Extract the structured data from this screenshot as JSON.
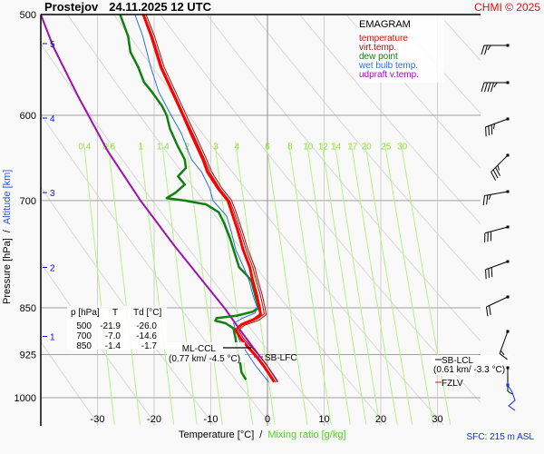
{
  "header": {
    "station": "Prostejov",
    "datetime": "24.11.2025 12 UTC",
    "copyright": "CHMI © 2025"
  },
  "footer": {
    "sfc": "SFC: 215 m ASL"
  },
  "chart_data": {
    "type": "line",
    "title": "Prostejov 24.11.2025 12 UTC",
    "diagram": "EMAGRAM",
    "xlabel": "Temperature [°C]",
    "xlabel_sep": "/",
    "xlabel2": "Mixing ratio [g/kg]",
    "ylabel": "Pressure [hPa]",
    "ylabel_sep": "/",
    "ylabel2": "Altitude [km]",
    "xlim": [
      -32,
      37
    ],
    "ylim": [
      1000,
      500
    ],
    "x_ticks": [
      -30,
      -20,
      -10,
      0,
      10,
      20,
      30
    ],
    "y_ticks": [
      500,
      600,
      700,
      850,
      925,
      1000
    ],
    "altitude_ticks": [
      {
        "km": "1",
        "p": 895
      },
      {
        "km": "2",
        "p": 790
      },
      {
        "km": "3",
        "p": 690
      },
      {
        "km": "4",
        "p": 603
      },
      {
        "km": "5",
        "p": 527
      }
    ],
    "mixing_ratio_lines": [
      "0.4",
      "0.6",
      "1",
      "1.4",
      "2",
      "3",
      "4",
      "6",
      "8",
      "10",
      "12",
      "14",
      "17",
      "20",
      "25",
      "30"
    ],
    "mixing_ratio_label_p": 640,
    "legend": {
      "position": "top-right",
      "entries": [
        {
          "name": "temperature",
          "color": "#ff0000"
        },
        {
          "name": "virt.temp.",
          "color": "#a01010"
        },
        {
          "name": "dew point",
          "color": "#108010"
        },
        {
          "name": "wet bulb temp.",
          "color": "#3070e0"
        },
        {
          "name": "udpraft v.temp.",
          "color": "#a010b0"
        }
      ]
    },
    "series": [
      {
        "name": "temperature",
        "color": "#ff0000",
        "points": [
          [
            -21.9,
            500
          ],
          [
            -20.5,
            520
          ],
          [
            -18.8,
            550
          ],
          [
            -16.8,
            575
          ],
          [
            -14.9,
            600
          ],
          [
            -13.5,
            620
          ],
          [
            -11.4,
            650
          ],
          [
            -10.6,
            665
          ],
          [
            -8.7,
            685
          ],
          [
            -7.0,
            700
          ],
          [
            -6.3,
            715
          ],
          [
            -5.2,
            740
          ],
          [
            -4.3,
            765
          ],
          [
            -3.1,
            790
          ],
          [
            -2.6,
            810
          ],
          [
            -1.9,
            830
          ],
          [
            -1.4,
            850
          ],
          [
            -1.2,
            860
          ],
          [
            -2.4,
            868
          ],
          [
            -4.6,
            876
          ],
          [
            -5.6,
            885
          ],
          [
            -4.6,
            900
          ],
          [
            -3.2,
            915
          ],
          [
            -1.8,
            930
          ],
          [
            -0.6,
            945
          ],
          [
            0.4,
            960
          ],
          [
            1.2,
            972
          ]
        ]
      },
      {
        "name": "virt.temp.",
        "color": "#a01010",
        "points": [
          [
            -21.6,
            500
          ],
          [
            -20.1,
            520
          ],
          [
            -18.4,
            550
          ],
          [
            -16.4,
            575
          ],
          [
            -14.5,
            600
          ],
          [
            -13.0,
            620
          ],
          [
            -10.9,
            650
          ],
          [
            -10.0,
            665
          ],
          [
            -8.2,
            685
          ],
          [
            -6.5,
            700
          ],
          [
            -5.7,
            715
          ],
          [
            -4.6,
            740
          ],
          [
            -3.6,
            765
          ],
          [
            -2.4,
            790
          ],
          [
            -1.8,
            810
          ],
          [
            -1.1,
            830
          ],
          [
            -0.6,
            850
          ],
          [
            -0.4,
            860
          ],
          [
            -1.6,
            868
          ],
          [
            -4.2,
            876
          ],
          [
            -5.3,
            885
          ],
          [
            -4.3,
            900
          ],
          [
            -2.8,
            915
          ],
          [
            -1.4,
            930
          ],
          [
            -0.2,
            945
          ],
          [
            0.8,
            960
          ],
          [
            1.6,
            972
          ]
        ]
      },
      {
        "name": "dew point",
        "color": "#108010",
        "points": [
          [
            -26.0,
            500
          ],
          [
            -24.6,
            520
          ],
          [
            -24.2,
            535
          ],
          [
            -22.8,
            550
          ],
          [
            -21.8,
            565
          ],
          [
            -20.4,
            575
          ],
          [
            -18.6,
            590
          ],
          [
            -17.8,
            600
          ],
          [
            -17.2,
            615
          ],
          [
            -15.8,
            635
          ],
          [
            -14.6,
            650
          ],
          [
            -14.4,
            660
          ],
          [
            -15.8,
            670
          ],
          [
            -14.6,
            680
          ],
          [
            -16.2,
            690
          ],
          [
            -17.8,
            697
          ],
          [
            -14.6,
            700
          ],
          [
            -10.8,
            705
          ],
          [
            -8.6,
            715
          ],
          [
            -7.6,
            730
          ],
          [
            -6.6,
            750
          ],
          [
            -5.6,
            775
          ],
          [
            -5.0,
            790
          ],
          [
            -3.8,
            800
          ],
          [
            -2.8,
            810
          ],
          [
            -2.2,
            830
          ],
          [
            -1.7,
            845
          ],
          [
            -1.6,
            850
          ],
          [
            -2.6,
            856
          ],
          [
            -5.4,
            862
          ],
          [
            -9.0,
            866
          ],
          [
            -9.2,
            870
          ],
          [
            -7.4,
            874
          ],
          [
            -6.0,
            882
          ],
          [
            -5.6,
            900
          ],
          [
            -5.4,
            915
          ],
          [
            -4.8,
            940
          ],
          [
            -4.6,
            955
          ],
          [
            -3.8,
            968
          ]
        ]
      },
      {
        "name": "wet bulb temp.",
        "color": "#3070e0",
        "points": [
          [
            -23.4,
            500
          ],
          [
            -22.0,
            520
          ],
          [
            -20.6,
            550
          ],
          [
            -19.2,
            575
          ],
          [
            -17.0,
            600
          ],
          [
            -15.2,
            620
          ],
          [
            -13.4,
            650
          ],
          [
            -11.6,
            665
          ],
          [
            -10.2,
            685
          ],
          [
            -9.6,
            700
          ],
          [
            -8.4,
            710
          ],
          [
            -7.2,
            720
          ],
          [
            -6.4,
            740
          ],
          [
            -5.6,
            765
          ],
          [
            -4.2,
            790
          ],
          [
            -3.2,
            810
          ],
          [
            -2.6,
            830
          ],
          [
            -1.8,
            850
          ],
          [
            -2.2,
            858
          ],
          [
            -4.4,
            866
          ],
          [
            -6.0,
            874
          ],
          [
            -5.6,
            885
          ],
          [
            -4.8,
            905
          ],
          [
            -3.4,
            925
          ],
          [
            -2.0,
            945
          ],
          [
            -0.6,
            962
          ],
          [
            0.2,
            972
          ]
        ]
      },
      {
        "name": "udpraft v.temp.",
        "color": "#a010b0",
        "points": [
          [
            -40.0,
            500
          ],
          [
            -37.8,
            530
          ],
          [
            -33.4,
            580
          ],
          [
            -28.2,
            640
          ],
          [
            -22.4,
            700
          ],
          [
            -16.4,
            760
          ],
          [
            -11.4,
            810
          ],
          [
            -7.6,
            850
          ],
          [
            -5.2,
            880
          ],
          [
            -3.6,
            900
          ],
          [
            -2.0,
            920
          ],
          [
            -0.4,
            940
          ],
          [
            1.0,
            960
          ],
          [
            1.8,
            972
          ]
        ]
      }
    ],
    "table": {
      "headers": [
        "p [hPa]",
        "T",
        "Td [°C]"
      ],
      "rows": [
        [
          "500",
          "-21.9",
          "-26.0"
        ],
        [
          "700",
          "-7.0",
          "-14.6"
        ],
        [
          "850",
          "-1.4",
          "-1.7"
        ]
      ]
    },
    "annotations": [
      {
        "name": "ml-ccl",
        "label": "ML-CCL",
        "sub": "(0.77 km/ -4.5 °C)",
        "p": 905,
        "t": -4.5,
        "color": "#000000"
      },
      {
        "name": "sb-lfc",
        "label": "SB-LFC",
        "p": 920,
        "t": -2.0,
        "color": "#a010b0"
      },
      {
        "name": "sb-lcl",
        "label": "SB-LCL",
        "sub": "(0.61 km/ -3.3 °C)",
        "p": 925,
        "color": "#000000"
      },
      {
        "name": "fzlv",
        "label": "FZLV",
        "p": 975,
        "color": "#e01010"
      }
    ],
    "wind_barbs": [
      {
        "p": 500,
        "dir": 270,
        "kt": 55
      },
      {
        "p": 550,
        "dir": 270,
        "kt": 45
      },
      {
        "p": 600,
        "dir": 250,
        "kt": 35
      },
      {
        "p": 650,
        "dir": 225,
        "kt": 35
      },
      {
        "p": 700,
        "dir": 260,
        "kt": 25
      },
      {
        "p": 750,
        "dir": 255,
        "kt": 30
      },
      {
        "p": 800,
        "dir": 250,
        "kt": 30
      },
      {
        "p": 850,
        "dir": 245,
        "kt": 20
      },
      {
        "p": 900,
        "dir": 200,
        "kt": 15
      },
      {
        "p": 950,
        "dir": 180,
        "kt": 5
      }
    ],
    "grid": true
  }
}
